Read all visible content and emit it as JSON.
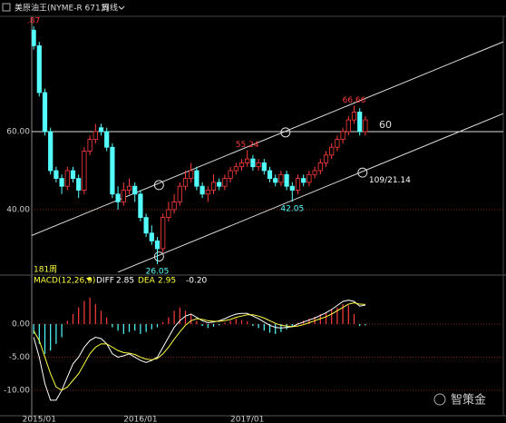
{
  "header": {
    "title": "美原油王(NYME-R 6713)",
    "period": "周线"
  },
  "chart_data": {
    "type": "candlestick",
    "categories": [
      null,
      "2015/01",
      null,
      null,
      null,
      null,
      null,
      null,
      null,
      null,
      null,
      null,
      null,
      null,
      null,
      null,
      null,
      null,
      null,
      "2016/01",
      null,
      null,
      null,
      null,
      null,
      null,
      null,
      null,
      null,
      null,
      null,
      null,
      null,
      null,
      null,
      null,
      null,
      null,
      "2017/01",
      null,
      null,
      null,
      null,
      null,
      null,
      null,
      null,
      null,
      null,
      null,
      null,
      null,
      null,
      null,
      null,
      null,
      null,
      null,
      null,
      null
    ],
    "open": [
      86,
      82,
      70,
      60,
      50,
      48,
      46,
      50,
      48,
      45,
      55,
      58,
      61,
      60,
      56,
      44,
      42,
      45,
      46,
      44,
      38,
      34,
      32,
      30,
      38,
      40,
      42,
      46,
      48,
      50,
      46,
      44,
      45,
      47,
      46,
      48,
      50,
      51,
      52,
      53,
      51,
      52,
      50,
      48,
      47,
      49,
      46,
      45,
      48,
      47,
      49,
      50,
      52,
      54,
      56,
      58,
      60,
      63,
      65,
      60
    ],
    "high": [
      87,
      83,
      71,
      61,
      51,
      49,
      51,
      51,
      49,
      56,
      59,
      62,
      62,
      61,
      57,
      46,
      47,
      48,
      47,
      45,
      39,
      36,
      33,
      39,
      42,
      44,
      47,
      50,
      52,
      51,
      47,
      46,
      49,
      48,
      49,
      51,
      52,
      53,
      55.24,
      54,
      53,
      53,
      51,
      49,
      50,
      50,
      47,
      49,
      49,
      50,
      51,
      53,
      55,
      57,
      59,
      61,
      64,
      66.66,
      66,
      64
    ],
    "low": [
      81,
      69,
      59,
      49,
      47,
      44,
      45,
      47,
      43,
      44,
      54,
      57,
      59,
      55,
      43,
      40,
      41,
      44,
      42,
      37,
      33,
      31,
      26.05,
      29,
      37,
      39,
      41,
      45,
      47,
      45,
      43,
      42,
      44,
      45,
      45,
      47,
      49,
      50,
      51,
      50,
      50,
      49,
      47,
      46,
      46,
      45,
      42.05,
      44,
      46,
      46,
      48,
      49,
      51,
      53,
      55,
      57,
      59,
      62,
      59,
      59
    ],
    "close": [
      82,
      70,
      60,
      50,
      48,
      46,
      50,
      48,
      45,
      55,
      58,
      60,
      60,
      56,
      44,
      42,
      45,
      46,
      44,
      38,
      34,
      32,
      30,
      38,
      40,
      42,
      46,
      48,
      50,
      46,
      44,
      45,
      47,
      46,
      48,
      50,
      51,
      52,
      53,
      51,
      52,
      50,
      48,
      47,
      49,
      46,
      45,
      48,
      47,
      49,
      50,
      52,
      54,
      56,
      58,
      60,
      63,
      65,
      60,
      63
    ],
    "up_color": "#ff3c3c",
    "down_color": "#54ffff",
    "ylim": [
      24,
      89
    ],
    "yticks": [
      {
        "value": 60,
        "label": "60.00"
      },
      {
        "value": 40,
        "label": "40.00"
      }
    ],
    "hline": {
      "value": 60,
      "label": "60"
    },
    "trendlines": [
      [
        [
          -0.5,
          33.3
        ],
        [
          83.5,
          83
        ]
      ],
      [
        [
          15,
          24
        ],
        [
          83.5,
          64.6
        ]
      ]
    ],
    "markers": [
      [
        22.3,
        46.3
      ],
      [
        44.8,
        59.8
      ],
      [
        58.5,
        49.5
      ],
      [
        22.3,
        28
      ]
    ],
    "annotations": [
      {
        "text": ".87",
        "x": 0,
        "y": 87,
        "color": "#ff3c3c"
      },
      {
        "text": "66.66",
        "x": 57,
        "y": 66.66,
        "color": "#ff3c3c"
      },
      {
        "text": "55.24",
        "x": 38,
        "y": 55.24,
        "color": "#ff3c3c"
      },
      {
        "text": "42.05",
        "x": 46,
        "y": 42.05,
        "color": "#54ffff"
      },
      {
        "text": "26.05",
        "x": 22,
        "y": 26.05,
        "color": "#54ffff"
      },
      {
        "text": "109/21.14",
        "x": 59,
        "y": 48.5,
        "color": "#ffffff"
      }
    ],
    "period_label": "181周",
    "macd": {
      "title": "MACD(12,26,9)",
      "diff_label": "DIFF",
      "diff_value": "2.85",
      "dea_label": "DEA",
      "dea_value": "2.95",
      "macd_value": "-0.20",
      "ylim": [
        -13.5,
        6.5
      ],
      "yticks": [
        {
          "value": 0,
          "label": "0.00"
        },
        {
          "value": -5,
          "label": "-5.00"
        },
        {
          "value": -10,
          "label": "-10.00"
        }
      ],
      "histogram": [
        -1.5,
        -3,
        -4.5,
        -4,
        -3,
        -2,
        0.5,
        1.5,
        2.5,
        3.5,
        4,
        3,
        2,
        1,
        -0.5,
        -1,
        -1.5,
        -1.2,
        -1,
        -1.5,
        -1.2,
        -0.8,
        -0.5,
        0.3,
        1,
        2,
        2.5,
        2,
        1.5,
        0.5,
        -0.3,
        -0.6,
        -0.4,
        -0.2,
        0.2,
        0.5,
        0.8,
        0.6,
        0.4,
        -0.3,
        -0.6,
        -1,
        -1.3,
        -1.5,
        -1.2,
        -0.8,
        -0.4,
        0.2,
        0.5,
        0.8,
        1.1,
        1.5,
        1.8,
        2.2,
        2.5,
        3,
        2.8,
        1.5,
        -0.3,
        -0.2
      ],
      "series": [
        {
          "name": "DIFF",
          "color": "#ffffff",
          "values": [
            -2,
            -5,
            -9,
            -11.5,
            -11.5,
            -10,
            -8,
            -6,
            -5,
            -3.5,
            -2.5,
            -2,
            -2.2,
            -3,
            -4.5,
            -5,
            -4.8,
            -4.5,
            -5,
            -5.5,
            -5.8,
            -5.5,
            -5,
            -3.5,
            -2,
            -0.5,
            0.5,
            1.2,
            1.5,
            1,
            0.5,
            0.2,
            0.3,
            0.5,
            0.8,
            1.2,
            1.5,
            1.6,
            1.6,
            1.2,
            0.8,
            0.3,
            -0.2,
            -0.5,
            -0.6,
            -0.5,
            -0.4,
            0,
            0.3,
            0.6,
            0.9,
            1.3,
            1.7,
            2.2,
            2.8,
            3.4,
            3.6,
            3.4,
            2.7,
            2.85
          ]
        },
        {
          "name": "DEA",
          "color": "#ffff40",
          "values": [
            -1,
            -2.5,
            -5,
            -7.5,
            -9.5,
            -10,
            -9.5,
            -8.5,
            -7.5,
            -6,
            -4.5,
            -3.5,
            -3,
            -3,
            -3.5,
            -4,
            -4.3,
            -4.4,
            -4.6,
            -5,
            -5.3,
            -5.4,
            -5.2,
            -4.5,
            -3.5,
            -2.3,
            -1.2,
            -0.2,
            0.5,
            0.8,
            0.7,
            0.5,
            0.4,
            0.4,
            0.5,
            0.7,
            1,
            1.2,
            1.4,
            1.4,
            1.2,
            0.9,
            0.5,
            0.1,
            -0.2,
            -0.3,
            -0.4,
            -0.3,
            -0.1,
            0.2,
            0.5,
            0.8,
            1.1,
            1.5,
            2,
            2.5,
            3,
            3.2,
            3,
            2.95
          ]
        }
      ]
    },
    "watermark": "智策金"
  }
}
